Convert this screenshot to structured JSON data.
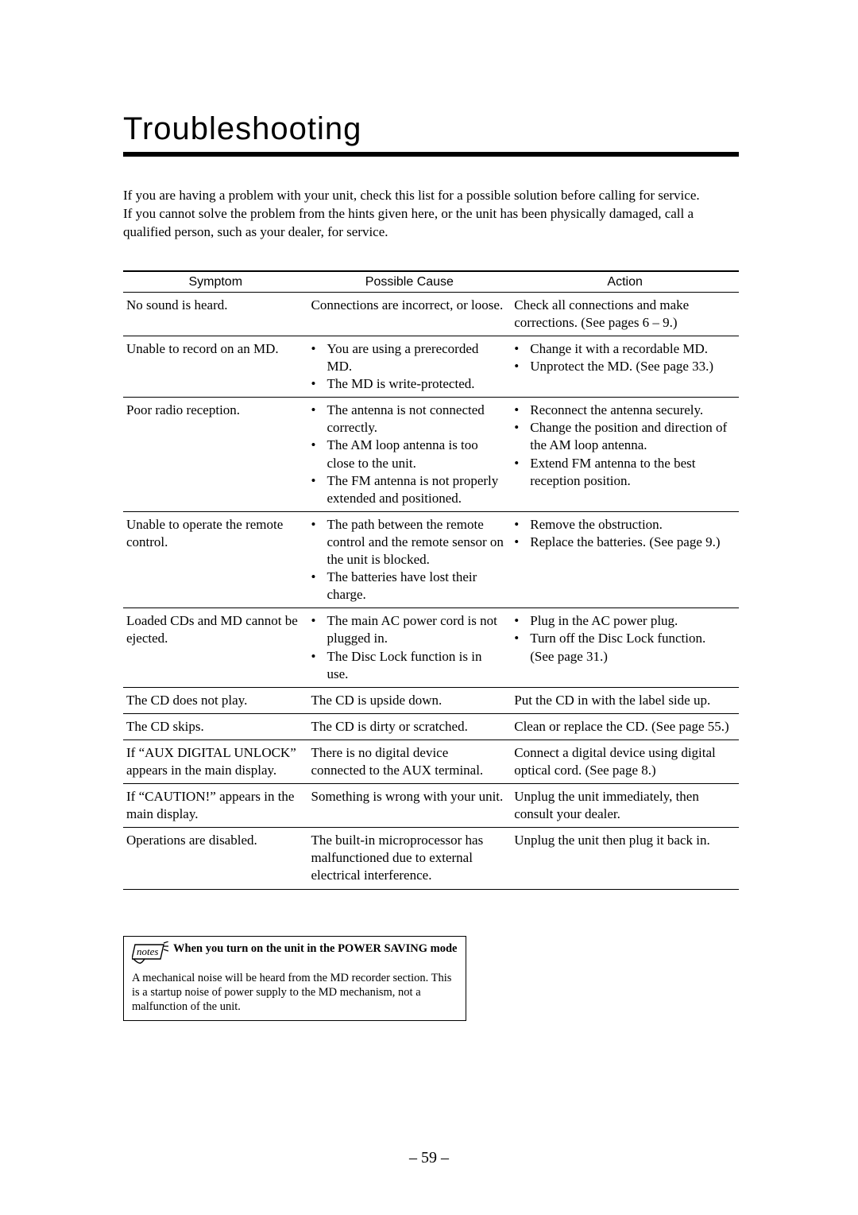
{
  "title": "Troubleshooting",
  "intro": [
    "If you are having a problem with your unit, check this list for a possible solution before calling for service.",
    "If you cannot solve the problem from the hints given here, or the unit has been physically damaged, call a qualified person, such as your dealer, for service."
  ],
  "columns": [
    "Symptom",
    "Possible Cause",
    "Action"
  ],
  "rows": [
    {
      "symptom": "No sound is heard.",
      "cause_plain": "Connections are incorrect, or loose.",
      "action_plain": "Check all connections and make corrections. (See pages 6 – 9.)"
    },
    {
      "symptom": "Unable to record on an MD.",
      "cause_list": [
        "You are using a prerecorded MD.",
        "The MD is write-protected."
      ],
      "action_list": [
        "Change it with a recordable MD.",
        "Unprotect the MD. (See page 33.)"
      ]
    },
    {
      "symptom": "Poor radio reception.",
      "cause_list": [
        "The antenna is not connected correctly.",
        "The AM loop antenna is too close to the unit.",
        "The FM antenna is not properly extended and positioned."
      ],
      "action_list": [
        "Reconnect the antenna securely.",
        "Change the position and direction of the AM loop antenna.",
        "Extend FM antenna to the best reception position."
      ]
    },
    {
      "symptom": "Unable to operate the remote control.",
      "cause_list": [
        "The path between the remote control and the remote sensor on the unit is blocked.",
        "The batteries have lost their charge."
      ],
      "action_list": [
        "Remove the obstruction.",
        "Replace the batteries. (See page 9.)"
      ]
    },
    {
      "symptom": "Loaded CDs and MD cannot be ejected.",
      "cause_list": [
        "The main AC power cord is not plugged in.",
        "The Disc Lock function is in use."
      ],
      "action_list": [
        "Plug in the AC power plug.",
        "Turn off the Disc Lock function. (See page 31.)"
      ]
    },
    {
      "symptom": "The CD does not play.",
      "cause_plain": "The CD is upside down.",
      "action_plain": "Put the CD in with the label side up."
    },
    {
      "symptom": "The CD skips.",
      "cause_plain": "The CD is dirty or scratched.",
      "action_plain": "Clean or replace the CD. (See page 55.)"
    },
    {
      "symptom": "If “AUX DIGITAL UNLOCK” appears in the main display.",
      "cause_plain": "There is no digital device connected to the AUX terminal.",
      "action_plain": "Connect a digital device using digital optical cord. (See page 8.)"
    },
    {
      "symptom": "If “CAUTION!” appears in the main display.",
      "cause_plain": "Something is wrong with your unit.",
      "action_plain": "Unplug the unit immediately, then consult your dealer."
    },
    {
      "symptom": "Operations are disabled.",
      "cause_plain": "The built-in microprocessor has malfunctioned due to external electrical interference.",
      "action_plain": "Unplug the unit then plug it back in."
    }
  ],
  "notes": {
    "label": "notes",
    "title": "When you turn on the unit in the POWER SAVING mode",
    "body": "A mechanical noise will be heard from the MD recorder section. This is a startup noise of power supply to the MD mechanism, not a malfunction of the unit."
  },
  "page_number": "– 59 –"
}
